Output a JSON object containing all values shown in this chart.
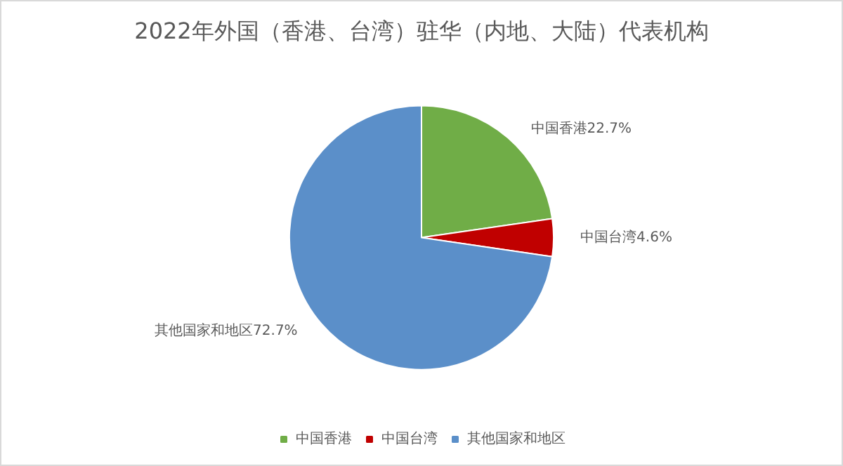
{
  "chart_data": {
    "type": "pie",
    "title": "2022年外国（香港、台湾）驻华（内地、大陆）代表机构",
    "categories": [
      "中国香港",
      "中国台湾",
      "其他国家和地区"
    ],
    "values": [
      22.7,
      4.6,
      72.7
    ],
    "value_labels": [
      "22.7%",
      "4.6%",
      "72.7%"
    ],
    "colors": [
      "#70ad47",
      "#c00000",
      "#5b8fc9"
    ],
    "legend": "bottom"
  }
}
